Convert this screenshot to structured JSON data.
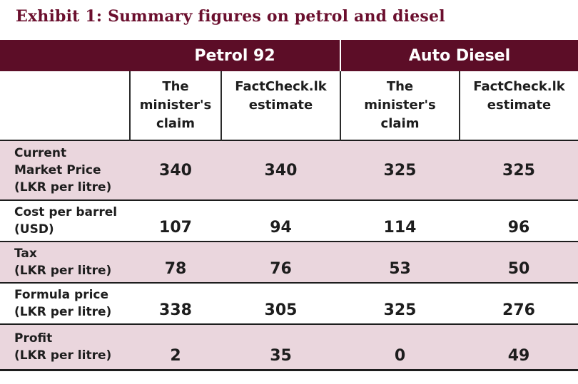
{
  "title": "Exhibit 1: Summary figures on petrol and diesel",
  "groups": {
    "petrol": "Petrol 92",
    "diesel": "Auto Diesel"
  },
  "subheaders": {
    "claim": [
      "The",
      "minister's",
      "claim"
    ],
    "estimate": [
      "FactCheck.lk",
      "estimate"
    ]
  },
  "rows": [
    {
      "label": [
        "Current",
        "Market Price",
        "(LKR per litre)"
      ],
      "values": [
        "340",
        "340",
        "325",
        "325"
      ]
    },
    {
      "label": [
        "Cost per barrel",
        "(USD)"
      ],
      "values": [
        "107",
        "94",
        "114",
        "96"
      ]
    },
    {
      "label": [
        "Tax",
        "(LKR per litre)"
      ],
      "values": [
        "78",
        "76",
        "53",
        "50"
      ]
    },
    {
      "label": [
        "Formula price",
        "(LKR per litre)"
      ],
      "values": [
        "338",
        "305",
        "325",
        "276"
      ]
    },
    {
      "label": [
        "Profit",
        "(LKR per litre)"
      ],
      "values": [
        "2",
        "35",
        "0",
        "49"
      ]
    }
  ],
  "colors": {
    "header_bg": "#5c0d27",
    "title": "#6b0f2e",
    "pink_row": "#ead6dd"
  }
}
